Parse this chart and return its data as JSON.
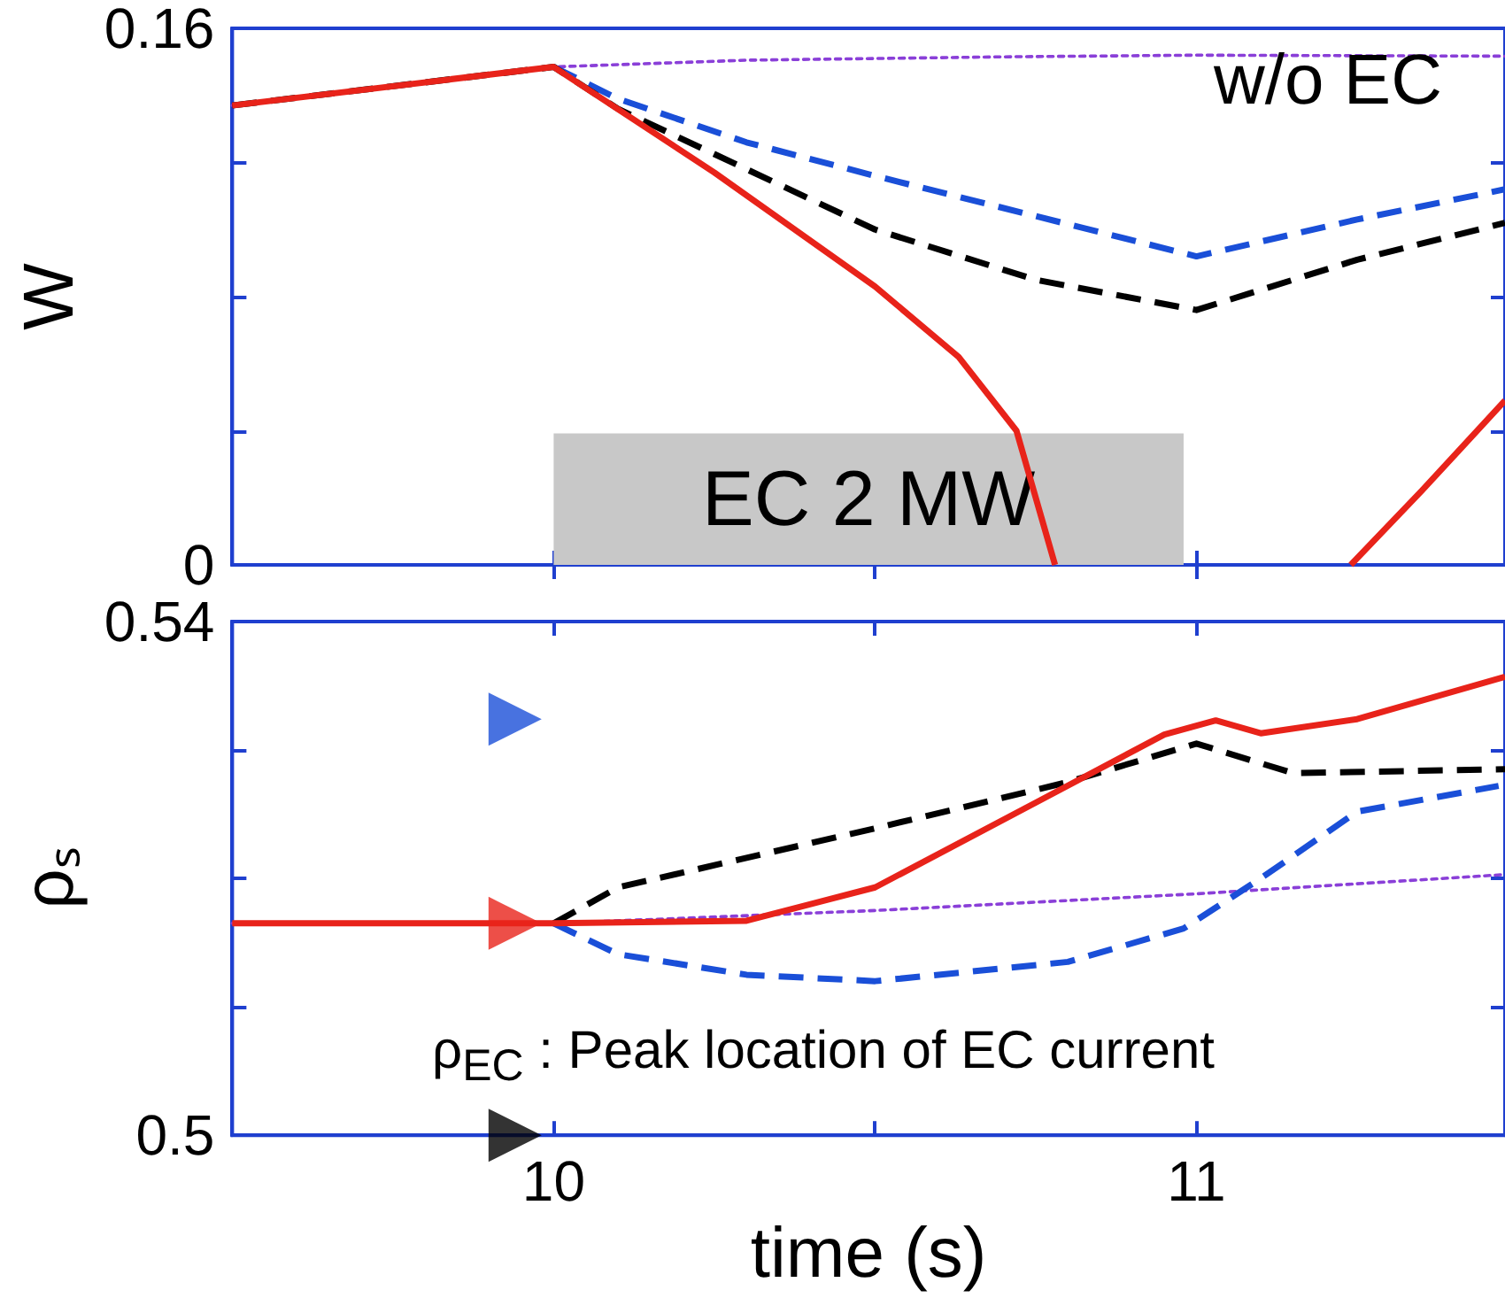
{
  "chart_data": [
    {
      "type": "line",
      "ylabel": "W",
      "tick_labels": "y",
      "grid": false,
      "xlim": [
        9.5,
        11.48
      ],
      "xticks": [
        {
          "value": 10,
          "label": null
        },
        {
          "value": 10.5,
          "label": null
        },
        {
          "value": 11,
          "label": null
        }
      ],
      "ylim": [
        0,
        0.16
      ],
      "yticks": [
        0,
        {
          "value": 0.04,
          "label": null
        },
        {
          "value": 0.08,
          "label": null
        },
        {
          "value": 0.12,
          "label": null
        },
        0.16
      ],
      "bands": [
        {
          "axis": "x",
          "from": 10,
          "to": 10.98,
          "label": "EC 2 MW",
          "color": "#c8c8c8"
        }
      ],
      "annotations": [
        "w/o EC"
      ],
      "series": [
        {
          "color": "#8a3fd8",
          "line_style": "dotted",
          "x": [
            9.5,
            10,
            10.3,
            10.7,
            11,
            11.48
          ],
          "values": [
            0.137,
            0.1485,
            0.1505,
            0.1515,
            0.152,
            0.1517
          ]
        },
        {
          "color": "#1a4fd8",
          "line_style": "dashed",
          "x": [
            10,
            10.1,
            10.3,
            10.5,
            10.75,
            11,
            11.25,
            11.48
          ],
          "values": [
            0.1485,
            0.139,
            0.126,
            0.116,
            0.104,
            0.092,
            0.103,
            0.112
          ]
        },
        {
          "color": "#000000",
          "line_style": "dashed",
          "x": [
            9.5,
            10,
            10.1,
            10.3,
            10.5,
            10.75,
            11,
            11.25,
            11.48
          ],
          "values": [
            0.137,
            0.1485,
            0.136,
            0.118,
            0.1,
            0.085,
            0.076,
            0.091,
            0.102
          ]
        },
        {
          "color": "#e8231a",
          "line_style": "solid",
          "x": [
            9.5,
            10,
            10.25,
            10.5,
            10.63,
            10.72,
            10.78,
            11,
            11.24,
            11.35,
            11.48
          ],
          "values": [
            0.137,
            0.1485,
            0.117,
            0.083,
            0.062,
            0.04,
            0,
            null,
            0,
            0.022,
            0.049
          ]
        }
      ]
    },
    {
      "type": "line",
      "ylabel": "ρₛ",
      "xlabel": "time (s)",
      "grid": false,
      "xlim": [
        9.5,
        11.48
      ],
      "xticks": [
        10,
        {
          "value": 10.5,
          "label": null
        },
        11
      ],
      "ylim": [
        0.5,
        0.54
      ],
      "yticks": [
        0.5,
        {
          "value": 0.51,
          "label": null
        },
        {
          "value": 0.52,
          "label": null
        },
        {
          "value": 0.53,
          "label": null
        },
        0.54
      ],
      "annotations": [
        "ρ$_{EC}$ : Peak location of EC current"
      ],
      "series": [
        {
          "color": "#8a3fd8",
          "line_style": "dotted",
          "x": [
            9.5,
            10,
            10.5,
            11,
            11.48
          ],
          "values": [
            0.5165,
            0.5165,
            0.5175,
            0.5188,
            0.5203
          ]
        },
        {
          "color": "#1a4fd8",
          "line_style": "dashed",
          "x": [
            10,
            10.1,
            10.3,
            10.5,
            10.8,
            10.98,
            11.1,
            11.25,
            11.47
          ],
          "values": [
            0.5165,
            0.5141,
            0.5125,
            0.512,
            0.5135,
            0.5161,
            0.52,
            0.5252,
            0.5272
          ]
        },
        {
          "color": "#000000",
          "line_style": "dashed",
          "x": [
            10,
            10.1,
            10.5,
            10.8,
            11,
            11.15,
            11.48
          ],
          "values": [
            0.5165,
            0.5193,
            0.5239,
            0.5275,
            0.5305,
            0.5282,
            0.5285
          ]
        },
        {
          "color": "#e8231a",
          "line_style": "solid",
          "x": [
            9.5,
            10,
            10.3,
            10.5,
            10.75,
            10.95,
            11.03,
            11.1,
            11.25,
            11.48
          ],
          "values": [
            0.5165,
            0.5165,
            0.5167,
            0.5193,
            0.5259,
            0.5312,
            0.5323,
            0.5313,
            0.5324,
            0.5357
          ]
        },
        {
          "type": "scatter",
          "marker": "triangle",
          "color": "#1a4fd8",
          "x": [
            9.94
          ],
          "values": [
            0.5324
          ]
        },
        {
          "type": "scatter",
          "marker": "triangle",
          "color": "#e8231a",
          "x": [
            9.94
          ],
          "values": [
            0.5165
          ]
        },
        {
          "type": "scatter",
          "marker": "triangle",
          "color": "#000000",
          "x": [
            9.94
          ],
          "values": [
            0.5
          ]
        }
      ]
    }
  ]
}
